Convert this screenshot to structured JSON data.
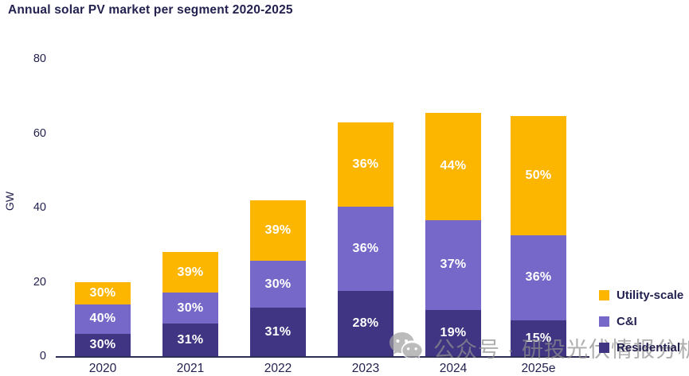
{
  "chart": {
    "title": "Annual solar PV market per segment 2020-2025",
    "ylabel": "GW"
  },
  "legend": {
    "items": [
      {
        "label": "Utility-scale",
        "color": "#fdb600"
      },
      {
        "label": "C&I",
        "color": "#7568c8"
      },
      {
        "label": "Residential",
        "color": "#3f3583"
      }
    ]
  },
  "watermark": {
    "icon": "wechat-icon",
    "text": "公众号 · 研投光伏情报分析",
    "color": "#8f8f8f"
  },
  "chart_data": {
    "type": "bar",
    "stacked": true,
    "title": "Annual solar PV market per segment 2020-2025",
    "xlabel": "",
    "ylabel": "GW",
    "ylim": [
      0,
      80
    ],
    "yticks": [
      0,
      20,
      40,
      60,
      80
    ],
    "grid": false,
    "legend_position": "lower right",
    "labels_format": "percent",
    "categories": [
      "2020",
      "2021",
      "2022",
      "2023",
      "2024",
      "2025e"
    ],
    "totals_gw": [
      20,
      28,
      42,
      63,
      65.5,
      64.5
    ],
    "series": [
      {
        "name": "Residential",
        "color": "#3f3583",
        "share_pct": [
          30,
          31,
          31,
          28,
          19,
          15
        ]
      },
      {
        "name": "C&I",
        "color": "#7568c8",
        "share_pct": [
          40,
          30,
          30,
          36,
          37,
          36
        ]
      },
      {
        "name": "Utility-scale",
        "color": "#fdb600",
        "share_pct": [
          30,
          39,
          39,
          36,
          44,
          50
        ]
      }
    ]
  }
}
